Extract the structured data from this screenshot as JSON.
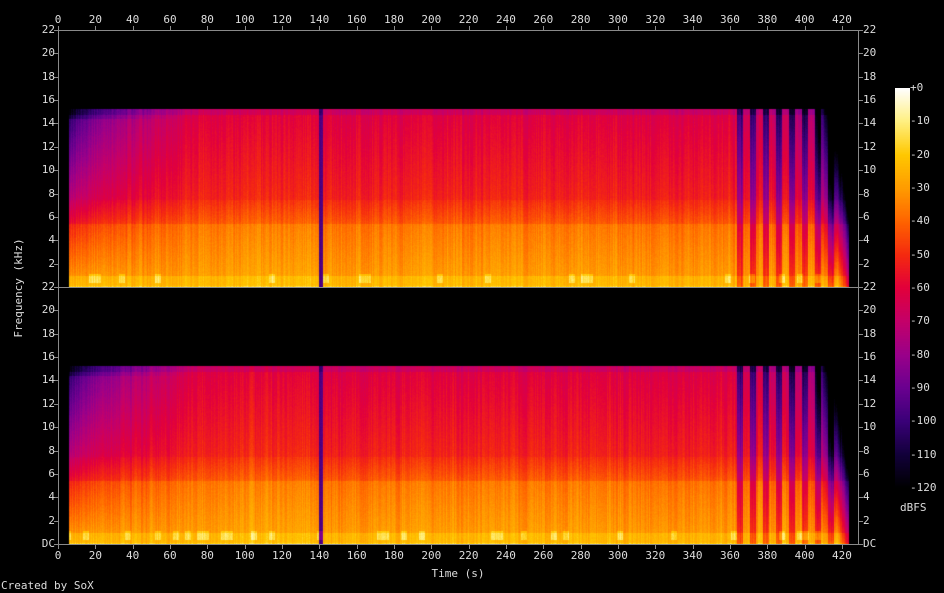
{
  "chart_data": {
    "type": "heatmap",
    "title": "",
    "xlabel": "Time (s)",
    "ylabel": "Frequency (kHz)",
    "xlim": [
      0,
      428.6
    ],
    "ylim": [
      0,
      22
    ],
    "x_ticks": [
      0,
      20,
      40,
      60,
      80,
      100,
      120,
      140,
      160,
      180,
      200,
      220,
      240,
      260,
      280,
      300,
      320,
      340,
      360,
      380,
      400,
      420
    ],
    "channels": [
      {
        "y_tick_labels": [
          "2",
          "4",
          "6",
          "8",
          "10",
          "12",
          "14",
          "16",
          "18",
          "20",
          "22"
        ]
      },
      {
        "y_tick_labels": [
          "DC",
          "2",
          "4",
          "6",
          "8",
          "10",
          "12",
          "14",
          "16",
          "18",
          "20",
          "22"
        ]
      }
    ],
    "colorbar": {
      "label": "dBFS",
      "range": [
        -120,
        0
      ],
      "tick_labels": [
        "+0",
        "-10",
        "-20",
        "-30",
        "-40",
        "-50",
        "-60",
        "-70",
        "-80",
        "-90",
        "-100",
        "-110",
        "-120"
      ],
      "colors": [
        "#000000",
        "#12003a",
        "#3a0078",
        "#6a0090",
        "#9a008a",
        "#c4006a",
        "#e2003c",
        "#f52a10",
        "#ff6400",
        "#ff9c00",
        "#ffc800",
        "#fff080",
        "#ffffff"
      ]
    },
    "spectral_features": {
      "content_start_s": 5,
      "content_end_s": 424,
      "upper_cutoff_khz": 15.3,
      "bright_band_khz": [
        0,
        5.5
      ],
      "dropout_at_s": 140,
      "striped_section_s": [
        360,
        420
      ]
    }
  },
  "footer": {
    "credit": "Created by SoX"
  }
}
